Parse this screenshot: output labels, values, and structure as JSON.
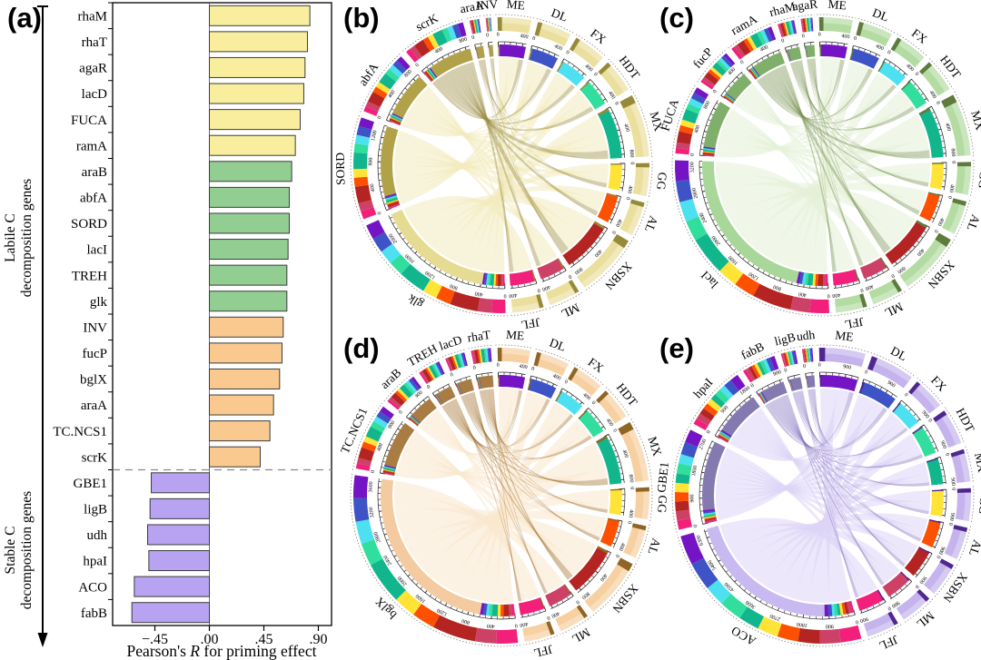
{
  "panels": {
    "a": {
      "letter": "(a)"
    },
    "b": {
      "letter": "(b)"
    },
    "c": {
      "letter": "(c)"
    },
    "d": {
      "letter": "(d)"
    },
    "e": {
      "letter": "(e)"
    }
  },
  "panel_a": {
    "group_top_line1": "Labile C",
    "group_top_line2": "decomposition genes",
    "group_bottom_line1": "Stable C",
    "group_bottom_line2": "decomposition genes",
    "xlabel_prefix": "Pearson's ",
    "xlabel_italic": "R",
    "xlabel_suffix": " for priming effect"
  },
  "chart_data": [
    {
      "type": "bar",
      "panel": "a",
      "orientation": "horizontal",
      "title": "",
      "xlabel": "Pearson's R for priming effect",
      "xlim": [
        -0.78,
        0.97
      ],
      "x_ticks": [
        {
          "v": -0.45,
          "label": "−.45"
        },
        {
          "v": 0.0,
          "label": ".00"
        },
        {
          "v": 0.45,
          "label": ".45"
        },
        {
          "v": 0.9,
          "label": ".90"
        }
      ],
      "group_colors": {
        "y": "#F8EE9E",
        "g": "#92CD92",
        "o": "#F9C98F",
        "p": "#B7A3F1"
      },
      "bar_border": "#3c3c3c",
      "separator_after_index": 17,
      "groups": [
        {
          "label": "Labile C decomposition genes",
          "range": [
            0,
            17
          ]
        },
        {
          "label": "Stable C decomposition genes",
          "range": [
            18,
            23
          ]
        }
      ],
      "bars": [
        {
          "label": "rhaM",
          "value": 0.83,
          "group": "y"
        },
        {
          "label": "rhaT",
          "value": 0.81,
          "group": "y"
        },
        {
          "label": "agaR",
          "value": 0.79,
          "group": "y"
        },
        {
          "label": "lacD",
          "value": 0.78,
          "group": "y"
        },
        {
          "label": "FUCA",
          "value": 0.75,
          "group": "y"
        },
        {
          "label": "ramA",
          "value": 0.71,
          "group": "y"
        },
        {
          "label": "araB",
          "value": 0.68,
          "group": "g"
        },
        {
          "label": "abfA",
          "value": 0.66,
          "group": "g"
        },
        {
          "label": "SORD",
          "value": 0.66,
          "group": "g"
        },
        {
          "label": "lacI",
          "value": 0.65,
          "group": "g"
        },
        {
          "label": "TREH",
          "value": 0.64,
          "group": "g"
        },
        {
          "label": "glk",
          "value": 0.64,
          "group": "g"
        },
        {
          "label": "INV",
          "value": 0.61,
          "group": "o"
        },
        {
          "label": "fucP",
          "value": 0.6,
          "group": "o"
        },
        {
          "label": "bglX",
          "value": 0.58,
          "group": "o"
        },
        {
          "label": "araA",
          "value": 0.53,
          "group": "o"
        },
        {
          "label": "TC.NCS1",
          "value": 0.5,
          "group": "o"
        },
        {
          "label": "scrK",
          "value": 0.42,
          "group": "o"
        },
        {
          "label": "GBE1",
          "value": -0.48,
          "group": "p"
        },
        {
          "label": "ligB",
          "value": -0.49,
          "group": "p"
        },
        {
          "label": "udh",
          "value": -0.51,
          "group": "p"
        },
        {
          "label": "hpaI",
          "value": -0.5,
          "group": "p"
        },
        {
          "label": "ACO",
          "value": -0.62,
          "group": "p"
        },
        {
          "label": "fabB",
          "value": -0.64,
          "group": "p"
        }
      ]
    },
    {
      "type": "chord",
      "panel": "b",
      "tick_step": 400,
      "tick_minor": 100,
      "tint": {
        "chord": "#F2EBBE",
        "chord_dark": "#9A8B3E",
        "band": "#EBDF9E",
        "band_dark": "#968A3A",
        "gene_arc": "#B1A24A",
        "gene_arc_big": "#E6DB93"
      },
      "sites": [
        {
          "label": "ME",
          "size": 460,
          "color": "#7414C4"
        },
        {
          "label": "DL",
          "size": 470,
          "color": "#3D53C6"
        },
        {
          "label": "FX",
          "size": 450,
          "color": "#4CE0F1"
        },
        {
          "label": "HDT",
          "size": 460,
          "color": "#31DE9D"
        },
        {
          "label": "MX",
          "size": 860,
          "color": "#11B68C"
        },
        {
          "label": "GG",
          "size": 450,
          "color": "#FFE437"
        },
        {
          "label": "AL",
          "size": 470,
          "color": "#FD5000"
        },
        {
          "label": "XSBN",
          "size": 870,
          "color": "#B42423"
        },
        {
          "label": "ML",
          "size": 430,
          "color": "#CD4166"
        },
        {
          "label": "JFL",
          "size": 430,
          "color": "#F21F7B"
        }
      ],
      "genes": [
        {
          "label": "glk",
          "size": 2350
        },
        {
          "label": "SORD",
          "size": 1400
        },
        {
          "label": "abfA",
          "size": 900
        },
        {
          "label": "scrK",
          "size": 870
        },
        {
          "label": "araA",
          "size": 130
        },
        {
          "label": "INV",
          "size": 70
        }
      ]
    },
    {
      "type": "chord",
      "panel": "c",
      "tick_step": 400,
      "tick_minor": 100,
      "tint": {
        "chord": "#E3F1D7",
        "chord_dark": "#76914F",
        "band": "#B4DBA2",
        "band_dark": "#5E7A3C",
        "gene_arc": "#7FAF6A",
        "gene_arc_big": "#A9D79A"
      },
      "sites": [
        {
          "label": "ME",
          "size": 460,
          "color": "#7414C4"
        },
        {
          "label": "DL",
          "size": 470,
          "color": "#3D53C6"
        },
        {
          "label": "FX",
          "size": 450,
          "color": "#4CE0F1"
        },
        {
          "label": "HDT",
          "size": 460,
          "color": "#31DE9D"
        },
        {
          "label": "MX",
          "size": 860,
          "color": "#11B68C"
        },
        {
          "label": "GG",
          "size": 450,
          "color": "#FFE437"
        },
        {
          "label": "AL",
          "size": 470,
          "color": "#FD5000"
        },
        {
          "label": "XSBN",
          "size": 870,
          "color": "#B42423"
        },
        {
          "label": "ML",
          "size": 430,
          "color": "#CD4166"
        },
        {
          "label": "JFL",
          "size": 430,
          "color": "#F21F7B"
        }
      ],
      "genes": [
        {
          "label": "lacI",
          "size": 3300
        },
        {
          "label": "FUCA",
          "size": 950
        },
        {
          "label": "fucP",
          "size": 520
        },
        {
          "label": "ramA",
          "size": 620
        },
        {
          "label": "rhaM",
          "size": 230
        },
        {
          "label": "agaR",
          "size": 160
        }
      ]
    },
    {
      "type": "chord",
      "panel": "d",
      "tick_step": 400,
      "tick_minor": 100,
      "tint": {
        "chord": "#FAE7CE",
        "chord_dark": "#A1702E",
        "band": "#F7D0A2",
        "band_dark": "#8F6525",
        "gene_arc": "#A87C42",
        "gene_arc_big": "#F4CBA0"
      },
      "sites": [
        {
          "label": "ME",
          "size": 460,
          "color": "#7414C4"
        },
        {
          "label": "DL",
          "size": 470,
          "color": "#3D53C6"
        },
        {
          "label": "FX",
          "size": 450,
          "color": "#4CE0F1"
        },
        {
          "label": "HDT",
          "size": 460,
          "color": "#31DE9D"
        },
        {
          "label": "MX",
          "size": 860,
          "color": "#11B68C"
        },
        {
          "label": "GG",
          "size": 450,
          "color": "#FFE437"
        },
        {
          "label": "AL",
          "size": 470,
          "color": "#FD5000"
        },
        {
          "label": "XSBN",
          "size": 870,
          "color": "#B42423"
        },
        {
          "label": "ML",
          "size": 430,
          "color": "#CD4166"
        },
        {
          "label": "JFL",
          "size": 430,
          "color": "#F21F7B"
        }
      ],
      "genes": [
        {
          "label": "bglX",
          "size": 3750
        },
        {
          "label": "TC.NCS1",
          "size": 950
        },
        {
          "label": "araB",
          "size": 500
        },
        {
          "label": "TREH",
          "size": 320
        },
        {
          "label": "lacD",
          "size": 280
        },
        {
          "label": "rhaT",
          "size": 280
        }
      ]
    },
    {
      "type": "chord",
      "panel": "e",
      "tick_step": 900,
      "tick_minor": 225,
      "tint": {
        "chord": "#DCD3F6",
        "chord_dark": "#8672C0",
        "band": "#C4B3ED",
        "band_dark": "#50268F",
        "gene_arc": "#857AB0",
        "gene_arc_big": "#C8B9F0"
      },
      "sites": [
        {
          "label": "ME",
          "size": 1350,
          "color": "#7414C4"
        },
        {
          "label": "DL",
          "size": 1300,
          "color": "#3D53C6"
        },
        {
          "label": "FX",
          "size": 950,
          "color": "#4CE0F1"
        },
        {
          "label": "HDT",
          "size": 1050,
          "color": "#31DE9D"
        },
        {
          "label": "MX",
          "size": 950,
          "color": "#11B68C"
        },
        {
          "label": "GG",
          "size": 950,
          "color": "#FFE437"
        },
        {
          "label": "AL",
          "size": 950,
          "color": "#FD5000"
        },
        {
          "label": "XSBN",
          "size": 1000,
          "color": "#B42423"
        },
        {
          "label": "ML",
          "size": 950,
          "color": "#CD4166"
        },
        {
          "label": "JFL",
          "size": 950,
          "color": "#F21F7B"
        }
      ],
      "genes": [
        {
          "label": "ACO",
          "size": 6600
        },
        {
          "label": "GBE1",
          "size": 2950
        },
        {
          "label": "hpaI",
          "size": 1900
        },
        {
          "label": "fabB",
          "size": 1000
        },
        {
          "label": "ligB",
          "size": 430
        },
        {
          "label": "udh",
          "size": 300
        }
      ]
    }
  ]
}
